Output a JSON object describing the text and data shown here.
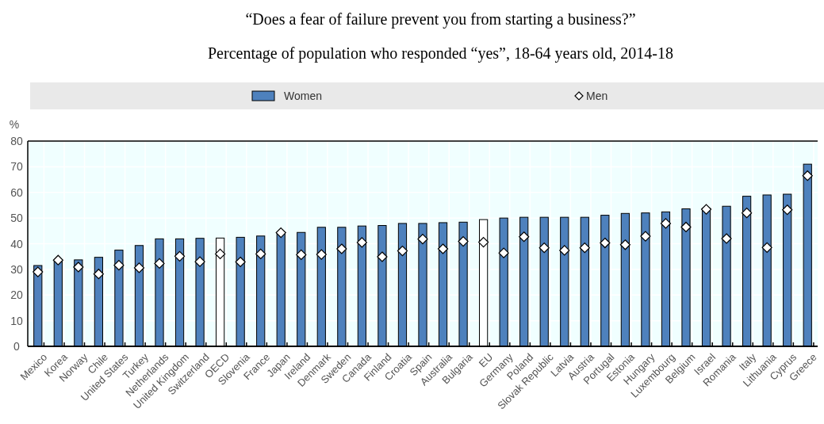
{
  "chart_data": {
    "type": "bar",
    "title": "“Does a fear of failure prevent you from starting a business?”",
    "subtitle": "Percentage of population who responded “yes”, 18-64 years old, 2014-18",
    "ylabel": "%",
    "categories": [
      "Mexico",
      "Korea",
      "Norway",
      "Chile",
      "United States",
      "Turkey",
      "Netherlands",
      "United Kingdom",
      "Switzerland",
      "OECD",
      "Slovenia",
      "France",
      "Japan",
      "Ireland",
      "Denmark",
      "Sweden",
      "Canada",
      "Finland",
      "Croatia",
      "Spain",
      "Australia",
      "Bulgaria",
      "EU",
      "Germany",
      "Poland",
      "Slovak Republic",
      "Latvia",
      "Austria",
      "Portugal",
      "Estonia",
      "Hungary",
      "Luxembourg",
      "Belgium",
      "Israel",
      "Romania",
      "Italy",
      "Lithuania",
      "Cyprus",
      "Greece"
    ],
    "series": [
      {
        "name": "Women",
        "color": "#4e81bd",
        "colors": [
          "#4e81bd",
          "#4e81bd",
          "#4e81bd",
          "#4e81bd",
          "#4e81bd",
          "#4e81bd",
          "#4e81bd",
          "#4e81bd",
          "#4e81bd",
          "#ffffff",
          "#4e81bd",
          "#4e81bd",
          "#4e81bd",
          "#4e81bd",
          "#4e81bd",
          "#4e81bd",
          "#4e81bd",
          "#4e81bd",
          "#4e81bd",
          "#4e81bd",
          "#4e81bd",
          "#4e81bd",
          "#ffffff",
          "#4e81bd",
          "#4e81bd",
          "#4e81bd",
          "#4e81bd",
          "#4e81bd",
          "#4e81bd",
          "#4e81bd",
          "#4e81bd",
          "#4e81bd",
          "#4e81bd",
          "#4e81bd",
          "#4e81bd",
          "#4e81bd",
          "#4e81bd",
          "#4e81bd",
          "#4e81bd"
        ],
        "values": [
          31.5,
          33.5,
          33.7,
          34.7,
          37.5,
          39.3,
          41.9,
          41.9,
          42.1,
          42.2,
          42.5,
          43.0,
          44.3,
          44.4,
          46.4,
          46.4,
          46.9,
          47.1,
          47.9,
          47.9,
          48.2,
          48.4,
          49.4,
          50.0,
          50.3,
          50.3,
          50.3,
          50.3,
          51.1,
          51.8,
          52.0,
          52.4,
          53.6,
          53.8,
          54.6,
          58.5,
          59.0,
          59.3,
          71.0
        ]
      },
      {
        "name": "Men",
        "type": "scatter",
        "marker": "diamond",
        "color": "#ffffff",
        "values": [
          29.0,
          33.6,
          30.9,
          28.2,
          31.6,
          30.6,
          32.3,
          35.1,
          33.0,
          36.0,
          32.9,
          36.0,
          44.3,
          35.7,
          35.8,
          38.0,
          40.5,
          34.9,
          37.2,
          41.8,
          38.0,
          40.9,
          40.6,
          36.4,
          42.7,
          38.4,
          37.4,
          38.4,
          40.3,
          39.6,
          42.9,
          47.9,
          46.5,
          53.4,
          42.0,
          52.0,
          38.5,
          53.2,
          66.5
        ]
      }
    ],
    "ylim": [
      0,
      80
    ],
    "yticks": [
      0,
      10,
      20,
      30,
      40,
      50,
      60,
      70,
      80
    ],
    "grid": true,
    "legend": "top"
  }
}
